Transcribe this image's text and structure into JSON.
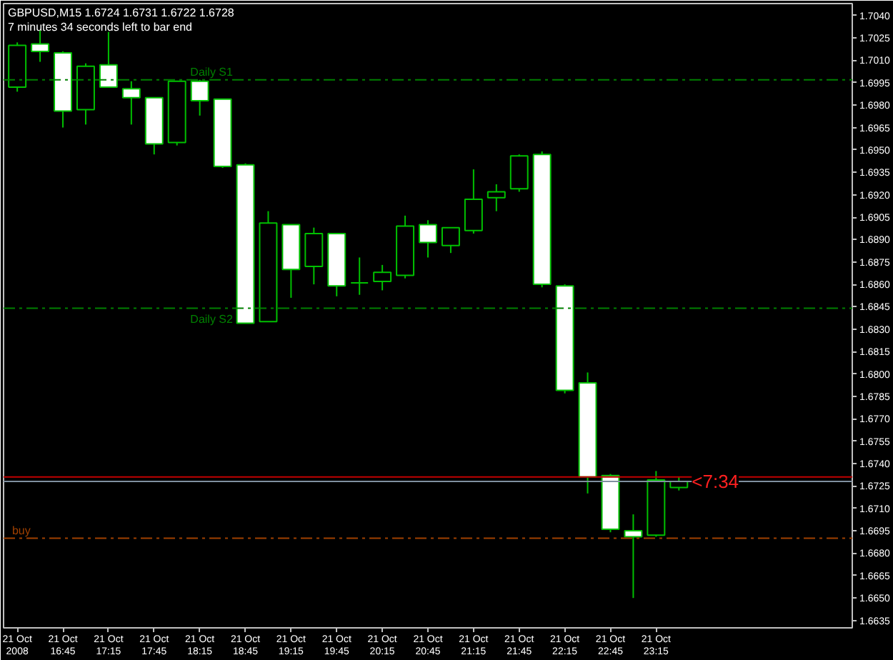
{
  "chart_data": {
    "type": "candlestick",
    "title": "GBPUSD,M15  1.6724 1.6731 1.6722 1.6728",
    "subtitle": "7 minutes 34 seconds left to bar end",
    "categories": [
      "21 Oct 2008",
      null,
      "21 Oct 16:45",
      null,
      "21 Oct 17:15",
      null,
      "21 Oct 17:45",
      null,
      "21 Oct 18:15",
      null,
      "21 Oct 18:45",
      null,
      "21 Oct 19:15",
      null,
      "21 Oct 19:45",
      null,
      "21 Oct 20:15",
      null,
      "21 Oct 20:45",
      null,
      "21 Oct 21:15",
      null,
      "21 Oct 21:45",
      null,
      "21 Oct 22:15",
      null,
      "21 Oct 22:45",
      null,
      "21 Oct 23:15",
      null,
      null,
      null,
      null,
      null,
      null,
      null,
      null
    ],
    "ohlc": [
      [
        1.6992,
        1.7022,
        1.6989,
        1.702
      ],
      [
        1.7021,
        1.703,
        1.7009,
        1.7016
      ],
      [
        1.7015,
        1.7016,
        1.6965,
        1.6976
      ],
      [
        1.6977,
        1.7008,
        1.6967,
        1.7006
      ],
      [
        1.7007,
        1.7029,
        1.6992,
        1.6992
      ],
      [
        1.6991,
        1.6996,
        1.6967,
        1.6985
      ],
      [
        1.6985,
        1.6985,
        1.6947,
        1.6954
      ],
      [
        1.6955,
        1.6996,
        1.6953,
        1.6996
      ],
      [
        1.6996,
        1.6997,
        1.6973,
        1.6983
      ],
      [
        1.6984,
        1.6984,
        1.6938,
        1.6939
      ],
      [
        1.694,
        1.6941,
        1.6834,
        1.6834
      ],
      [
        1.6835,
        1.6909,
        1.6835,
        1.6901
      ],
      [
        1.69,
        1.69,
        1.6851,
        1.687
      ],
      [
        1.6872,
        1.6898,
        1.686,
        1.6894
      ],
      [
        1.6894,
        1.6894,
        1.6852,
        1.6859
      ],
      [
        1.6861,
        1.6878,
        1.6853,
        1.6861
      ],
      [
        1.6862,
        1.6873,
        1.6856,
        1.6868
      ],
      [
        1.6866,
        1.6906,
        1.6864,
        1.6899
      ],
      [
        1.69,
        1.6903,
        1.6878,
        1.6888
      ],
      [
        1.6886,
        1.6898,
        1.6881,
        1.6898
      ],
      [
        1.6896,
        1.6937,
        1.6894,
        1.6917
      ],
      [
        1.6918,
        1.6927,
        1.6909,
        1.6922
      ],
      [
        1.6924,
        1.6947,
        1.6922,
        1.6946
      ],
      [
        1.6947,
        1.6949,
        1.6858,
        1.686
      ],
      [
        1.6859,
        1.686,
        1.6787,
        1.6789
      ],
      [
        1.6794,
        1.6801,
        1.672,
        1.6731
      ],
      [
        1.6732,
        1.6733,
        1.6694,
        1.6696
      ],
      [
        1.6695,
        1.6706,
        1.665,
        1.6691
      ],
      [
        1.6692,
        1.6735,
        1.6691,
        1.6729
      ],
      [
        1.6724,
        1.6731,
        1.6722,
        1.6728
      ],
      null,
      null,
      null,
      null,
      null,
      null,
      null
    ],
    "color": "#00c000",
    "colors": [
      "#000000",
      "#ffffff",
      "#ffffff",
      "#000000",
      "#ffffff",
      "#ffffff",
      "#ffffff",
      "#000000",
      "#ffffff",
      "#ffffff",
      "#ffffff",
      "#000000",
      "#ffffff",
      "#000000",
      "#ffffff",
      "#00c000",
      "#000000",
      "#000000",
      "#ffffff",
      "#000000",
      "#000000",
      "#000000",
      "#000000",
      "#ffffff",
      "#ffffff",
      "#ffffff",
      "#ffffff",
      "#ffffff",
      "#000000",
      "#000000",
      null,
      null,
      null,
      null,
      null,
      null,
      null
    ],
    "ylim": [
      1.663,
      1.7048
    ],
    "yticks": [
      1.6635,
      {
        "value": 1.665,
        "label": "1.6650"
      },
      1.6665,
      {
        "value": 1.668,
        "label": "1.6680"
      },
      1.6695,
      {
        "value": 1.671,
        "label": "1.6710"
      },
      1.6725,
      {
        "value": 1.674,
        "label": "1.6740"
      },
      1.6755,
      {
        "value": 1.677,
        "label": "1.6770"
      },
      1.6785,
      {
        "value": 1.68,
        "label": "1.6800"
      },
      1.6815,
      {
        "value": 1.683,
        "label": "1.6830"
      },
      1.6845,
      {
        "value": 1.686,
        "label": "1.6860"
      },
      1.6875,
      {
        "value": 1.689,
        "label": "1.6890"
      },
      1.6905,
      {
        "value": 1.692,
        "label": "1.6920"
      },
      1.6935,
      {
        "value": 1.695,
        "label": "1.6950"
      },
      1.6965,
      {
        "value": 1.698,
        "label": "1.6980"
      },
      1.6995,
      {
        "value": 1.701,
        "label": "1.7010"
      },
      1.7025,
      {
        "value": 1.704,
        "label": "1.7040"
      }
    ],
    "ref_lines": [
      {
        "axis": "y",
        "value": 1.6997,
        "label": "Daily S1",
        "color": "#008000",
        "line_style": "dashdot"
      },
      {
        "axis": "y",
        "value": 1.6844,
        "label": "Daily S2",
        "color": "#008000",
        "line_style": "dashdot"
      },
      {
        "axis": "y",
        "value": 1.6731,
        "color": "#c00000",
        "line_style": "solid"
      },
      {
        "axis": "y",
        "value": 1.6728,
        "color": "#8090a0",
        "line_style": "solid"
      },
      {
        "axis": "y",
        "value": 1.669,
        "label": "buy",
        "color": "#a04000",
        "line_style": "dashdot"
      }
    ],
    "annotations": [
      "<7:34"
    ],
    "grid": false
  }
}
